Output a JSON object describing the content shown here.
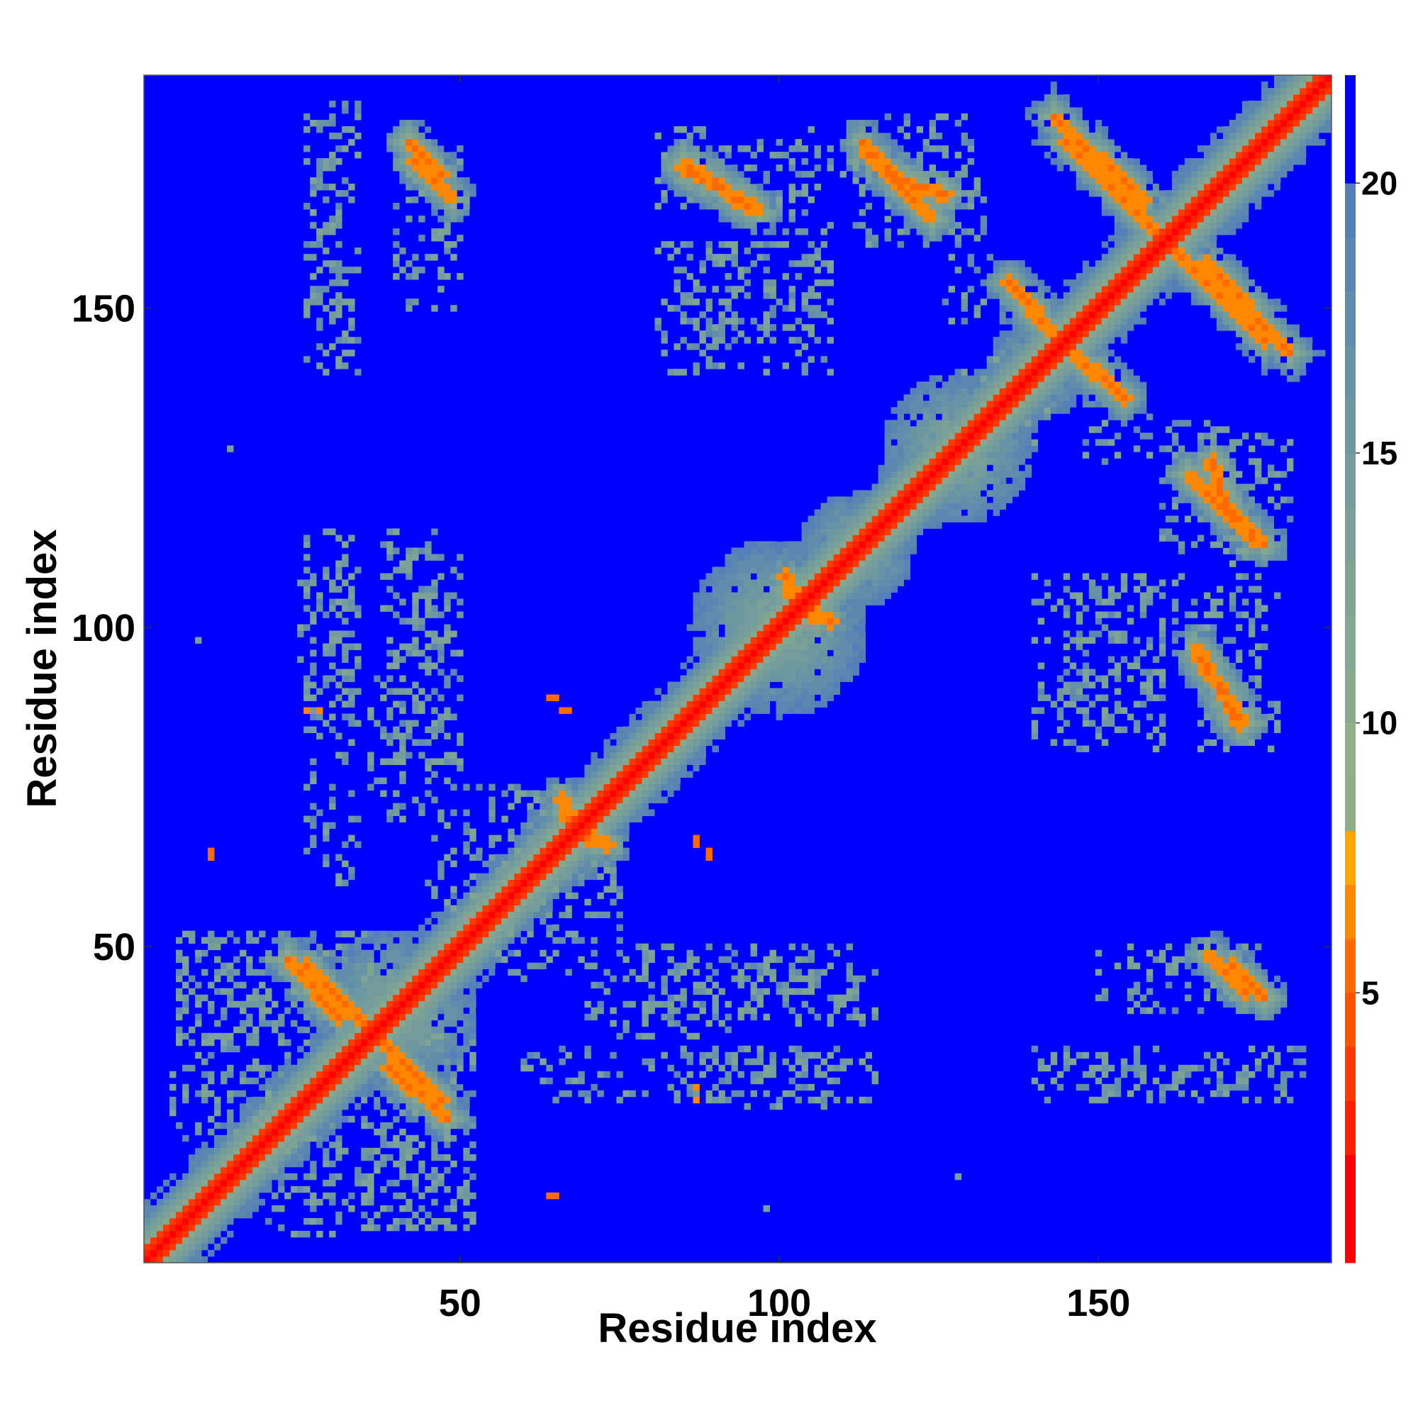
{
  "chart_data": {
    "type": "heatmap",
    "title": "",
    "xlabel": "Residue index",
    "ylabel": "Residue index",
    "n_residues": 186,
    "xlim": [
      1,
      186
    ],
    "ylim": [
      1,
      186
    ],
    "x_ticks": [
      50,
      100,
      150
    ],
    "y_ticks": [
      50,
      100,
      150
    ],
    "colorbar": {
      "ticks": [
        5,
        10,
        15,
        20
      ],
      "range": [
        0,
        22
      ],
      "levels": [
        {
          "max": 2,
          "color": "#ff0000"
        },
        {
          "max": 3,
          "color": "#ff2000"
        },
        {
          "max": 4,
          "color": "#ff3a00"
        },
        {
          "max": 5,
          "color": "#ff5200"
        },
        {
          "max": 6,
          "color": "#ff6a00"
        },
        {
          "max": 7,
          "color": "#ff8800"
        },
        {
          "max": 8,
          "color": "#ffa500"
        },
        {
          "max": 9,
          "color": "#8fae86"
        },
        {
          "max": 10,
          "color": "#92b088"
        },
        {
          "max": 11,
          "color": "#8aaa8c"
        },
        {
          "max": 12,
          "color": "#84a890"
        },
        {
          "max": 13,
          "color": "#7fa494"
        },
        {
          "max": 14,
          "color": "#7aa098"
        },
        {
          "max": 15,
          "color": "#749c9c"
        },
        {
          "max": 16,
          "color": "#6e98a0"
        },
        {
          "max": 17,
          "color": "#6892a6"
        },
        {
          "max": 18,
          "color": "#628cac"
        },
        {
          "max": 19,
          "color": "#5c86b2"
        },
        {
          "max": 20,
          "color": "#557fb8"
        },
        {
          "max": 22,
          "color": "#0000ff"
        }
      ]
    },
    "background_value": 22,
    "diagonal_band": {
      "core_max": 2,
      "inner_width": 2,
      "outer_width": 7
    },
    "off_diagonal_contacts": [
      {
        "from": [
          42,
          176
        ],
        "to": [
          47,
          171
        ],
        "halo": 3
      },
      {
        "from": [
          85,
          173
        ],
        "to": [
          95,
          166
        ],
        "halo": 3
      },
      {
        "from": [
          113,
          176
        ],
        "to": [
          118,
          171
        ],
        "halo": 3
      },
      {
        "from": [
          119,
          170
        ],
        "to": [
          126,
          168
        ],
        "halo": 2
      },
      {
        "from": [
          143,
          180
        ],
        "to": [
          157,
          167
        ],
        "halo": 5
      },
      {
        "from": [
          161,
          160
        ],
        "to": [
          176,
          145
        ],
        "halo": 5
      },
      {
        "from": [
          136,
          154
        ],
        "to": [
          141,
          148
        ],
        "halo": 3
      },
      {
        "from": [
          144,
          145
        ],
        "to": [
          154,
          136
        ],
        "halo": 3
      },
      {
        "from": [
          164,
          124
        ],
        "to": [
          174,
          114
        ],
        "halo": 3
      },
      {
        "from": [
          165,
          97
        ],
        "to": [
          172,
          85
        ],
        "halo": 3
      },
      {
        "from": [
          167,
          49
        ],
        "to": [
          173,
          43
        ],
        "halo": 3
      },
      {
        "from": [
          23,
          48
        ],
        "to": [
          31,
          39
        ],
        "halo": 4
      },
      {
        "from": [
          38,
          35
        ],
        "to": [
          47,
          26
        ],
        "halo": 4
      },
      {
        "from": [
          66,
          71
        ],
        "to": [
          73,
          66
        ],
        "halo": 3
      },
      {
        "from": [
          101,
          106
        ],
        "to": [
          108,
          101
        ],
        "halo": 2
      }
    ],
    "diagonal_halos": [
      {
        "center": [
          40,
          40
        ],
        "radius": 13
      },
      {
        "center": [
          100,
          100
        ],
        "radius": 14
      },
      {
        "center": [
          128,
          128
        ],
        "radius": 12
      },
      {
        "center": [
          112,
          112
        ],
        "radius": 9
      },
      {
        "center": [
          68,
          68
        ],
        "radius": 8
      },
      {
        "center": [
          140,
          140
        ],
        "radius": 8
      }
    ],
    "scattered_contact_regions": [
      {
        "x": [
          25,
          33
        ],
        "y": [
          86,
          115
        ]
      },
      {
        "x": [
          39,
          50
        ],
        "y": [
          78,
          112
        ]
      },
      {
        "x": [
          6,
          32
        ],
        "y": [
          40,
          52
        ]
      },
      {
        "x": [
          5,
          33
        ],
        "y": [
          26,
          38
        ]
      },
      {
        "x": [
          35,
          52
        ],
        "y": [
          6,
          36
        ]
      },
      {
        "x": [
          20,
          30
        ],
        "y": [
          5,
          35
        ]
      },
      {
        "x": [
          55,
          75
        ],
        "y": [
          45,
          70
        ]
      },
      {
        "x": [
          70,
          92
        ],
        "y": [
          36,
          48
        ]
      },
      {
        "x": [
          60,
          110
        ],
        "y": [
          26,
          34
        ]
      },
      {
        "x": [
          80,
          115
        ],
        "y": [
          38,
          48
        ]
      },
      {
        "x": [
          81,
          108
        ],
        "y": [
          140,
          160
        ]
      },
      {
        "x": [
          81,
          105
        ],
        "y": [
          166,
          178
        ]
      },
      {
        "x": [
          110,
          130
        ],
        "y": [
          166,
          180
        ]
      },
      {
        "x": [
          126,
          135
        ],
        "y": [
          148,
          158
        ]
      },
      {
        "x": [
          145,
          160
        ],
        "y": [
          84,
          108
        ]
      },
      {
        "x": [
          162,
          175
        ],
        "y": [
          100,
          108
        ]
      },
      {
        "x": [
          160,
          175
        ],
        "y": [
          112,
          132
        ]
      },
      {
        "x": [
          155,
          175
        ],
        "y": [
          40,
          50
        ]
      },
      {
        "x": [
          140,
          180
        ],
        "y": [
          26,
          32
        ]
      },
      {
        "x": [
          28,
          34
        ],
        "y": [
          140,
          184
        ]
      },
      {
        "x": [
          40,
          50
        ],
        "y": [
          150,
          160
        ]
      },
      {
        "x": [
          128,
          138
        ],
        "y": [
          134,
          142
        ]
      }
    ],
    "isolated_points": [
      {
        "x": 65,
        "y": 89,
        "v": 6
      },
      {
        "x": 67,
        "y": 87,
        "v": 6
      },
      {
        "x": 87,
        "y": 66,
        "v": 6
      },
      {
        "x": 89,
        "y": 64,
        "v": 6
      },
      {
        "x": 64,
        "y": 11,
        "v": 6
      },
      {
        "x": 11,
        "y": 65,
        "v": 6
      },
      {
        "x": 28,
        "y": 87,
        "v": 7
      },
      {
        "x": 26,
        "y": 87,
        "v": 7
      },
      {
        "x": 165,
        "y": 27,
        "v": 12
      },
      {
        "x": 150,
        "y": 26,
        "v": 14
      },
      {
        "x": 14,
        "y": 128,
        "v": 14
      },
      {
        "x": 9,
        "y": 98,
        "v": 14
      }
    ]
  }
}
